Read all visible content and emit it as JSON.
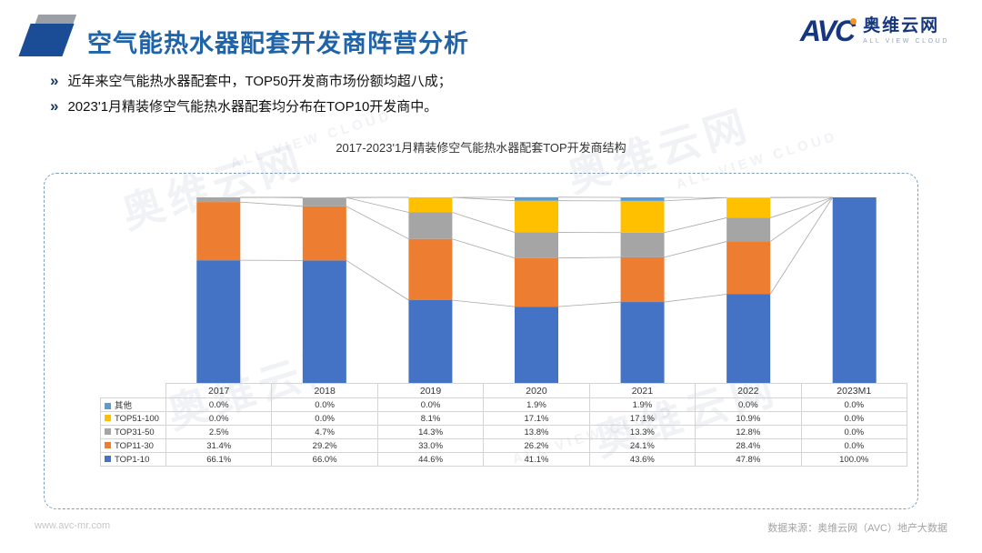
{
  "header": {
    "title": "空气能热水器配套开发商阵营分析",
    "logo": {
      "brand": "AVC",
      "brand_cn": "奥维云网",
      "brand_en": "ALL VIEW CLOUD"
    }
  },
  "bullets": {
    "glyph": "»",
    "items": [
      "近年来空气能热水器配套中，TOP50开发商市场份额均超八成；",
      "2023'1月精装修空气能热水器配套均分布在TOP10开发商中。"
    ]
  },
  "chart_data": {
    "type": "bar",
    "stacked": true,
    "percent": true,
    "title": "2017-2023'1月精装修空气能热水器配套TOP开发商结构",
    "categories": [
      "2017",
      "2018",
      "2019",
      "2020",
      "2021",
      "2022",
      "2023M1"
    ],
    "series": [
      {
        "name": "TOP1-10",
        "color": "#4472C4",
        "values": [
          66.1,
          66.0,
          44.6,
          41.1,
          43.6,
          47.8,
          100.0
        ]
      },
      {
        "name": "TOP11-30",
        "color": "#ED7D31",
        "values": [
          31.4,
          29.2,
          33.0,
          26.2,
          24.1,
          28.4,
          0.0
        ]
      },
      {
        "name": "TOP31-50",
        "color": "#A5A5A5",
        "values": [
          2.5,
          4.7,
          14.3,
          13.8,
          13.3,
          12.8,
          0.0
        ]
      },
      {
        "name": "TOP51-100",
        "color": "#FFC000",
        "values": [
          0.0,
          0.0,
          8.1,
          17.1,
          17.1,
          10.9,
          0.0
        ]
      },
      {
        "name": "其他",
        "color": "#5B9BD5",
        "values": [
          0.0,
          0.0,
          0.0,
          1.9,
          1.9,
          0.0,
          0.0
        ]
      }
    ],
    "table_order": [
      "其他",
      "TOP51-100",
      "TOP31-50",
      "TOP11-30",
      "TOP1-10"
    ],
    "ylim": [
      0,
      100
    ],
    "grid": false,
    "legend_position": "table-left",
    "connector_lines": true
  },
  "footer": {
    "left": "www.avc-mr.com",
    "right": "数据来源：奥维云网（AVC）地产大数据"
  },
  "watermark": {
    "cn": "奥维云网",
    "en": "ALL VIEW CLOUD"
  }
}
